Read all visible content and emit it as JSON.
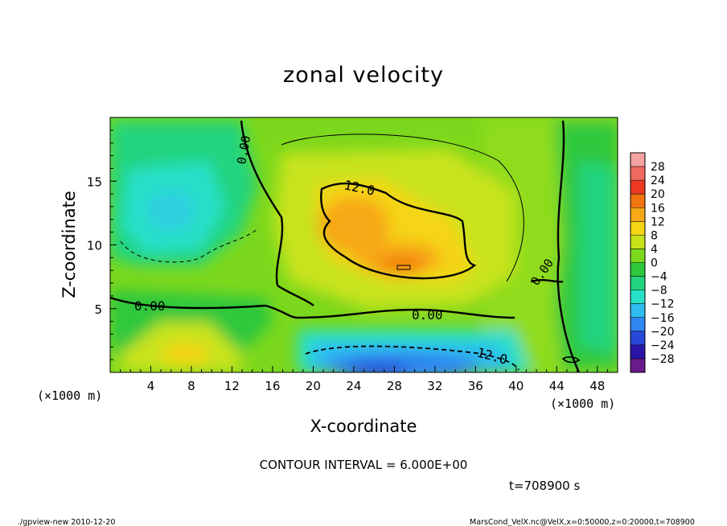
{
  "chart_data": {
    "type": "heatmap",
    "title": "zonal velocity",
    "xlabel": "X-coordinate",
    "ylabel": "Z-coordinate",
    "x_unit": "(×1000 m)",
    "y_unit": "(×1000 m)",
    "xlim": [
      0,
      50
    ],
    "ylim": [
      0,
      20
    ],
    "x_ticks": [
      "4",
      "8",
      "12",
      "16",
      "20",
      "24",
      "28",
      "32",
      "36",
      "40",
      "44",
      "48"
    ],
    "y_ticks": [
      "5",
      "10",
      "15"
    ],
    "colorbar": {
      "levels": [
        "28",
        "24",
        "20",
        "16",
        "12",
        "8",
        "4",
        "0",
        "−4",
        "−8",
        "−12",
        "−16",
        "−20",
        "−24",
        "−28"
      ],
      "colors": [
        "#f4a3a3",
        "#f06a5f",
        "#ec3a22",
        "#f27410",
        "#f7a818",
        "#f5d515",
        "#c8e31a",
        "#7cd81c",
        "#2ec83c",
        "#23d47e",
        "#28e0c8",
        "#2fbcf0",
        "#2f86f0",
        "#2848d8",
        "#2a14a8",
        "#6a1a8a"
      ]
    },
    "contour_labels": [
      "0.00",
      "12.0",
      "0.00",
      "0.00",
      "12.0",
      "0.00"
    ],
    "contour_interval": "CONTOUR INTERVAL = 6.000E+00",
    "time_label": "t=708900 s"
  },
  "footer": {
    "left": "./gpview-new  2010-12-20",
    "right": "MarsCond_VelX.nc@VelX,x=0:50000,z=0:20000,t=708900"
  }
}
